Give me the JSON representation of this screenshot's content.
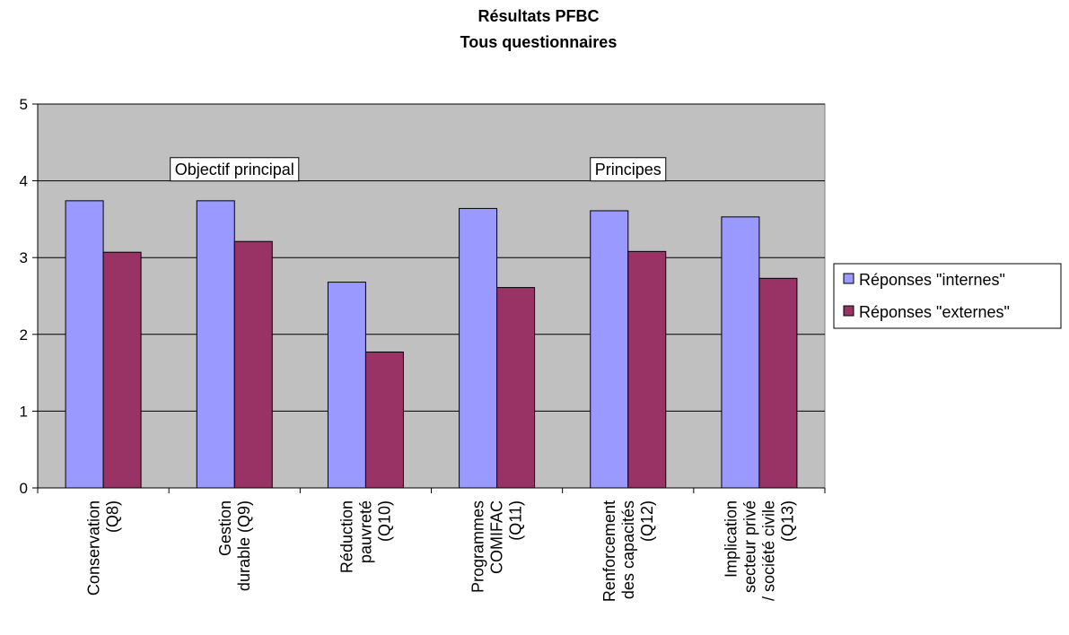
{
  "chart_data": {
    "type": "bar",
    "title": "Résultats PFBC",
    "subtitle": "Tous questionnaires",
    "xlabel": "",
    "ylabel": "",
    "ylim": [
      0,
      5
    ],
    "yticks": [
      "0",
      "1",
      "2",
      "3",
      "4",
      "5"
    ],
    "grid": true,
    "plot_background": "#c0c0c0",
    "categories": [
      [
        "Conservation",
        "(Q8)"
      ],
      [
        "Gestion",
        "durable (Q9)"
      ],
      [
        "Réduction",
        "pauvreté",
        "(Q10)"
      ],
      [
        "Programmes",
        "COMIFAC",
        "(Q11)"
      ],
      [
        "Renforcement",
        "des capacités",
        "(Q12)"
      ],
      [
        "Implication",
        "secteur privé",
        "/ société civile",
        "(Q13)"
      ]
    ],
    "series": [
      {
        "name": "Réponses \"internes\"",
        "color": "#9999ff",
        "values": [
          3.74,
          3.74,
          2.68,
          3.64,
          3.61,
          3.53
        ]
      },
      {
        "name": "Réponses \"externes\"",
        "color": "#993366",
        "values": [
          3.07,
          3.21,
          1.77,
          2.61,
          3.08,
          2.73
        ]
      }
    ],
    "annotations": [
      {
        "text": "Objectif principal",
        "between": [
          1,
          2
        ],
        "y": 4.15
      },
      {
        "text": "Principes",
        "between": [
          4,
          5
        ],
        "y": 4.15
      }
    ],
    "legend_position": "right"
  }
}
